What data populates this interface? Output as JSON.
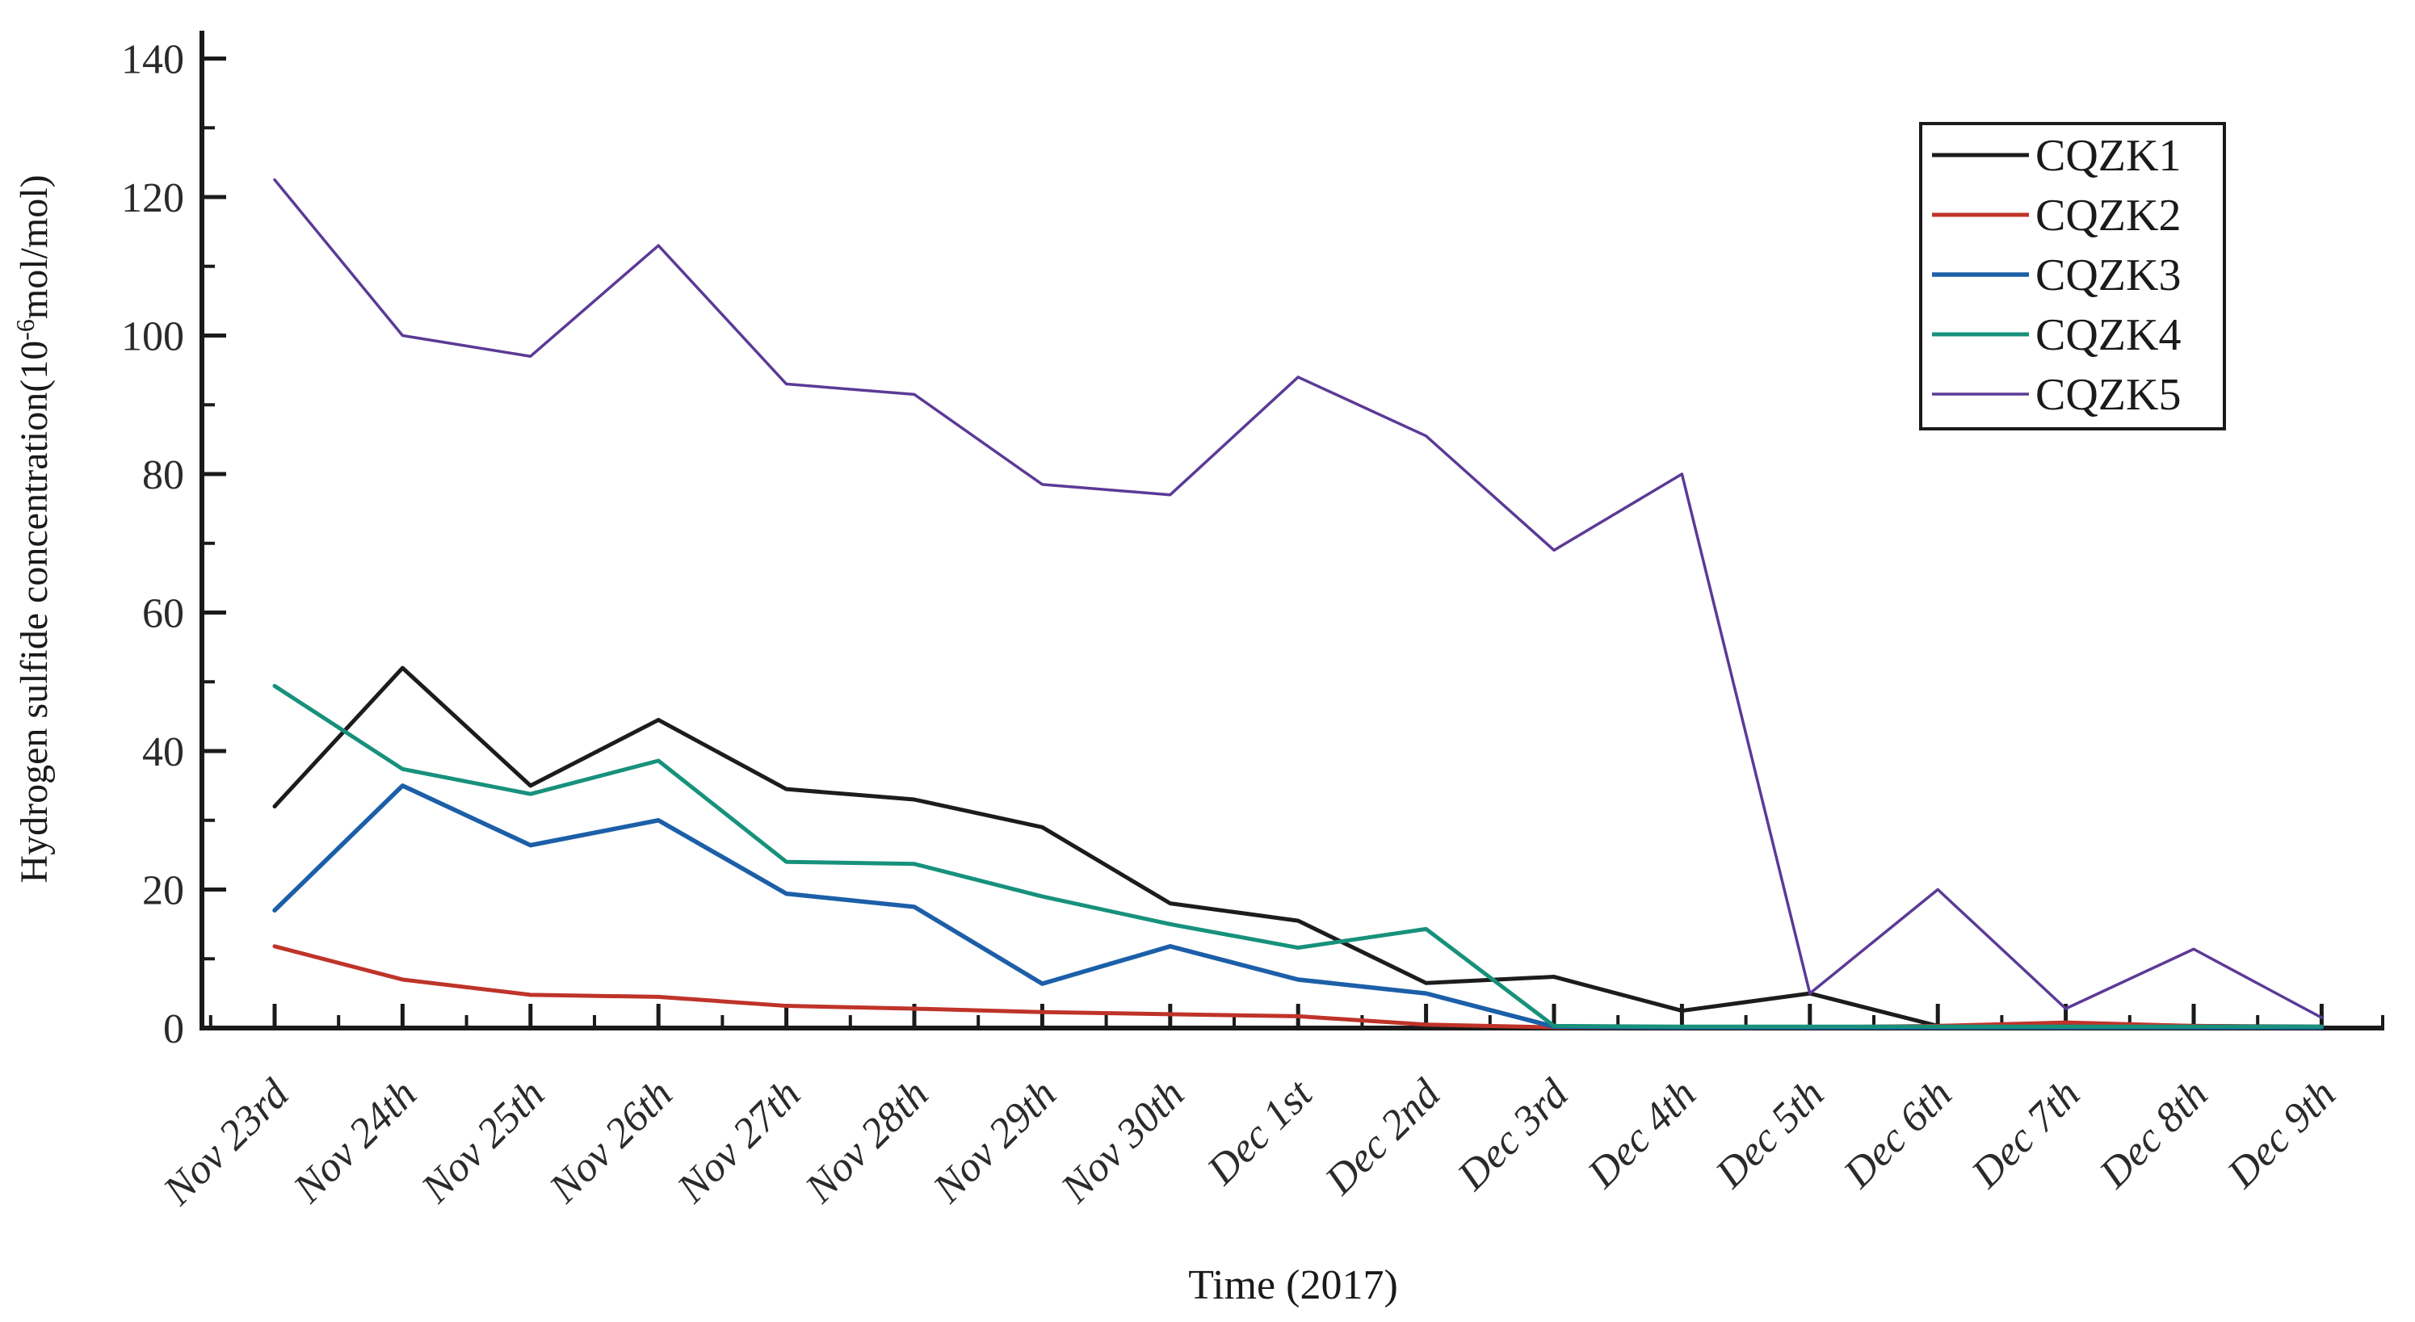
{
  "figure": {
    "background_color": "#ffffff",
    "axis_color": "#1a1a1a",
    "x_axis": {
      "title": "Time (2017)"
    },
    "y_axis": {
      "title_prefix": "Hydrogen sulfide concentration(10",
      "title_superscript": "-6",
      "title_suffix": "mol/mol)",
      "tick_labels": [
        "0",
        "20",
        "40",
        "60",
        "80",
        "100",
        "120",
        "140"
      ]
    },
    "legend": {
      "entries": [
        "CQZK1",
        "CQZK2",
        "CQZK3",
        "CQZK4",
        "CQZK5"
      ]
    }
  },
  "chart_data": {
    "type": "line",
    "title": "",
    "xlabel": "Time (2017)",
    "ylabel": "Hydrogen sulfide concentration(10-6mol/mol)",
    "ylim": [
      0,
      140
    ],
    "ytick_step": 20,
    "ytick_minor_step": 10,
    "grid": false,
    "legend_position": "top-right",
    "categories": [
      "Nov 23rd",
      "Nov 24th",
      "Nov 25th",
      "Nov 26th",
      "Nov 27th",
      "Nov 28th",
      "Nov 29th",
      "Nov 30th",
      "Dec 1st",
      "Dec 2nd",
      "Dec 3rd",
      "Dec 4th",
      "Dec 5th",
      "Dec 6th",
      "Dec 7th",
      "Dec 8th",
      "Dec 9th"
    ],
    "series": [
      {
        "name": "CQZK1",
        "color": "#1c1c1c",
        "stroke_width": 5,
        "values": [
          32,
          52,
          35,
          44.5,
          34.5,
          33,
          29,
          18,
          15.5,
          6.5,
          7.4,
          2.5,
          5,
          0.3,
          0.3,
          0.3,
          0.2
        ]
      },
      {
        "name": "CQZK2",
        "color": "#bf3329",
        "stroke_width": 5,
        "values": [
          11.8,
          7,
          4.8,
          4.5,
          3.2,
          2.8,
          2.3,
          2,
          1.7,
          0.5,
          0.1,
          0.1,
          0.1,
          0.3,
          0.8,
          0.3,
          0.1
        ]
      },
      {
        "name": "CQZK3",
        "color": "#1c5fa8",
        "stroke_width": 5.5,
        "values": [
          17,
          35,
          26.4,
          30,
          19.4,
          17.5,
          6.4,
          11.8,
          7,
          5,
          0.2,
          0.1,
          0.1,
          0.1,
          0.1,
          0.1,
          0.1
        ]
      },
      {
        "name": "CQZK4",
        "color": "#17917c",
        "stroke_width": 5,
        "values": [
          49.4,
          37.4,
          33.8,
          38.6,
          24,
          23.7,
          19,
          15,
          11.6,
          14.3,
          0.3,
          0.2,
          0.2,
          0.2,
          0.2,
          0.2,
          0.2
        ]
      },
      {
        "name": "CQZK5",
        "color": "#5b3a96",
        "stroke_width": 3.5,
        "values": [
          122.5,
          100,
          97,
          113,
          93,
          91.5,
          78.5,
          77,
          94,
          85.5,
          69,
          80,
          5,
          20,
          2.8,
          11.4,
          1.5
        ]
      }
    ]
  }
}
